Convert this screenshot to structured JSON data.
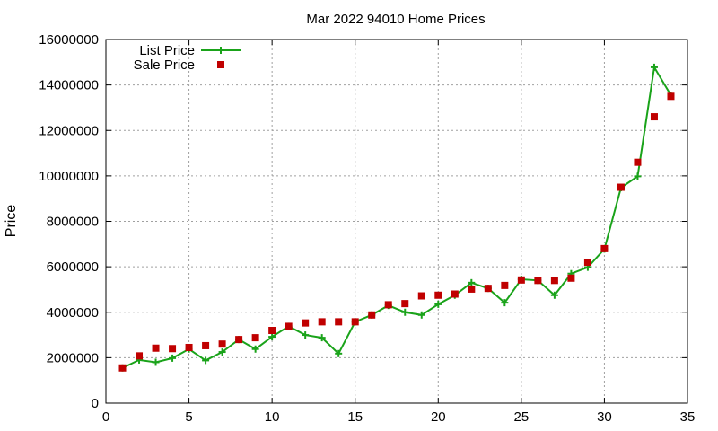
{
  "chart_data": {
    "type": "line",
    "title": "Mar 2022 94010 Home Prices",
    "xlabel": "",
    "ylabel": "Price",
    "xlim": [
      0,
      35
    ],
    "ylim": [
      0,
      16000000
    ],
    "x_ticks": [
      0,
      5,
      10,
      15,
      20,
      25,
      30,
      35
    ],
    "y_ticks": [
      0,
      2000000,
      4000000,
      6000000,
      8000000,
      10000000,
      12000000,
      14000000,
      16000000
    ],
    "grid": true,
    "legend_position": "top-left",
    "series": [
      {
        "name": "List Price",
        "style": "line-with-plus-markers",
        "color": "#1aa31a",
        "x": [
          1,
          2,
          3,
          4,
          5,
          6,
          7,
          8,
          9,
          10,
          11,
          12,
          13,
          14,
          15,
          16,
          17,
          18,
          19,
          20,
          21,
          22,
          23,
          24,
          25,
          26,
          27,
          28,
          29,
          30,
          31,
          32,
          33,
          34
        ],
        "y": [
          1550000,
          1900000,
          1800000,
          1980000,
          2380000,
          1880000,
          2250000,
          2800000,
          2380000,
          2920000,
          3380000,
          3000000,
          2880000,
          2180000,
          3580000,
          3880000,
          4300000,
          4000000,
          3880000,
          4350000,
          4750000,
          5300000,
          5050000,
          4420000,
          5450000,
          5400000,
          4750000,
          5700000,
          5980000,
          6780000,
          9480000,
          9980000,
          14780000,
          13550000
        ]
      },
      {
        "name": "Sale Price",
        "style": "square-markers",
        "color": "#c00000",
        "x": [
          1,
          2,
          3,
          4,
          5,
          6,
          7,
          8,
          9,
          10,
          11,
          12,
          13,
          14,
          15,
          16,
          17,
          18,
          19,
          20,
          21,
          22,
          23,
          24,
          25,
          26,
          27,
          28,
          29,
          30,
          31,
          32,
          33,
          34
        ],
        "y": [
          1550000,
          2080000,
          2420000,
          2400000,
          2450000,
          2530000,
          2600000,
          2800000,
          2880000,
          3200000,
          3380000,
          3530000,
          3580000,
          3580000,
          3580000,
          3880000,
          4330000,
          4380000,
          4720000,
          4750000,
          4800000,
          5020000,
          5050000,
          5180000,
          5420000,
          5400000,
          5400000,
          5500000,
          6200000,
          6800000,
          9500000,
          10600000,
          12600000,
          13500000
        ]
      }
    ]
  }
}
